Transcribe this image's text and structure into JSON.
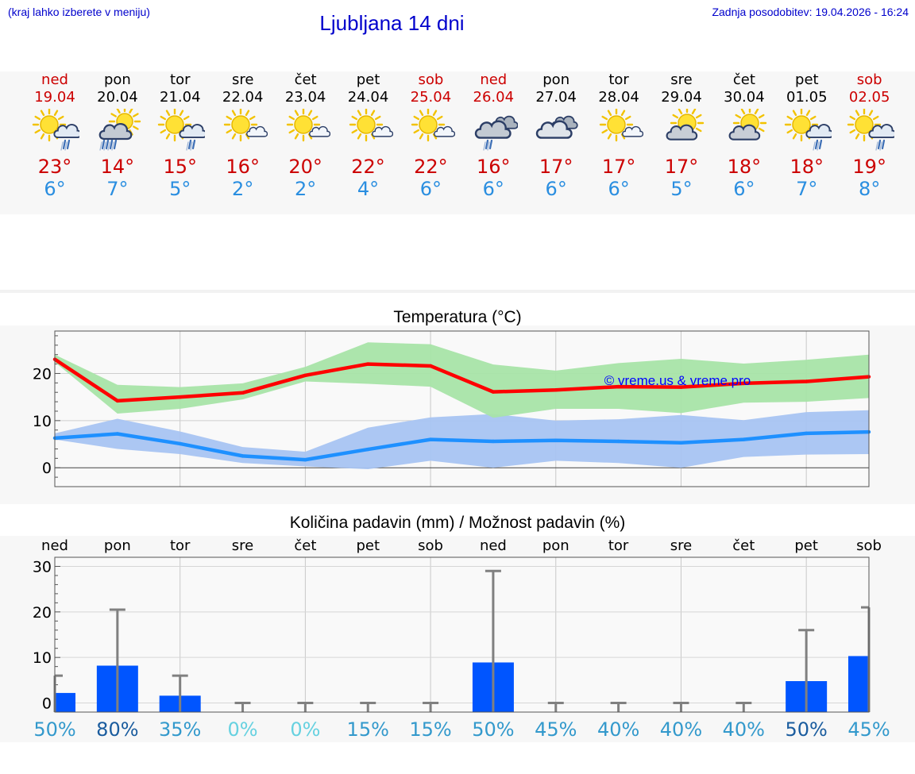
{
  "header": {
    "hint": "(kraj lahko izberete v meniju)",
    "title": "Ljubljana 14 dni",
    "updated_label": "Zadnja posodobitev:",
    "updated_value": "19.04.2026 - 16:24"
  },
  "days": [
    {
      "name": "ned",
      "date": "19.04",
      "weekend": true,
      "icon": "sun-cloud-rain-icon",
      "max": "23°",
      "min": "6°"
    },
    {
      "name": "pon",
      "date": "20.04",
      "weekend": false,
      "icon": "cloud-heavy-rain-icon",
      "max": "14°",
      "min": "7°"
    },
    {
      "name": "tor",
      "date": "21.04",
      "weekend": false,
      "icon": "sun-cloud-rain-icon",
      "max": "15°",
      "min": "5°"
    },
    {
      "name": "sre",
      "date": "22.04",
      "weekend": false,
      "icon": "sun-small-cloud-icon",
      "max": "16°",
      "min": "2°"
    },
    {
      "name": "čet",
      "date": "23.04",
      "weekend": false,
      "icon": "sun-small-cloud-icon",
      "max": "20°",
      "min": "2°"
    },
    {
      "name": "pet",
      "date": "24.04",
      "weekend": false,
      "icon": "sun-small-cloud-icon",
      "max": "22°",
      "min": "4°"
    },
    {
      "name": "sob",
      "date": "25.04",
      "weekend": true,
      "icon": "sun-small-cloud-icon",
      "max": "22°",
      "min": "6°"
    },
    {
      "name": "ned",
      "date": "26.04",
      "weekend": true,
      "icon": "cloud-rain-icon",
      "max": "16°",
      "min": "6°"
    },
    {
      "name": "pon",
      "date": "27.04",
      "weekend": false,
      "icon": "cloudy-icon",
      "max": "17°",
      "min": "6°"
    },
    {
      "name": "tor",
      "date": "28.04",
      "weekend": false,
      "icon": "sun-small-cloud-icon",
      "max": "17°",
      "min": "6°"
    },
    {
      "name": "sre",
      "date": "29.04",
      "weekend": false,
      "icon": "sun-big-cloud-icon",
      "max": "17°",
      "min": "5°"
    },
    {
      "name": "čet",
      "date": "30.04",
      "weekend": false,
      "icon": "sun-big-cloud-icon",
      "max": "18°",
      "min": "6°"
    },
    {
      "name": "pet",
      "date": "01.05",
      "weekend": false,
      "icon": "sun-cloud-rain-icon",
      "max": "18°",
      "min": "7°"
    },
    {
      "name": "sob",
      "date": "02.05",
      "weekend": true,
      "icon": "sun-cloud-rain-icon",
      "max": "19°",
      "min": "8°"
    }
  ],
  "colors": {
    "link_blue": "#0000cc",
    "max_line": "#ff0000",
    "max_band": "#a8e4a8",
    "min_line": "#1e90ff",
    "min_band": "#a8c4f2",
    "bar": "#0055ff",
    "whisker": "#808080"
  },
  "chart_data": [
    {
      "type": "line",
      "title": "Temperatura (°C)",
      "ylim": [
        -4,
        29
      ],
      "yticks": [
        0,
        10,
        20
      ],
      "watermark": "© vreme.us & vreme.pro",
      "categories": [
        "ned",
        "pon",
        "tor",
        "sre",
        "čet",
        "pet",
        "sob",
        "ned",
        "pon",
        "tor",
        "sre",
        "čet",
        "pet",
        "sob"
      ],
      "series": [
        {
          "name": "max",
          "values": [
            23,
            14.2,
            15,
            15.9,
            19.6,
            22,
            21.6,
            16.1,
            16.5,
            17.2,
            17.1,
            17.9,
            18.3,
            19.3
          ]
        },
        {
          "name": "max_range",
          "low": [
            22.4,
            11.5,
            12.5,
            14.5,
            18.3,
            17.8,
            17.2,
            10.6,
            12.5,
            12.5,
            11.6,
            13.8,
            14,
            14.8
          ],
          "high": [
            24,
            17.6,
            17.1,
            17.9,
            21.4,
            26.6,
            26.2,
            21.9,
            20.6,
            22.2,
            23.1,
            22.1,
            22.9,
            24
          ]
        },
        {
          "name": "min",
          "values": [
            6.3,
            7.2,
            5.1,
            2.5,
            1.7,
            3.9,
            6,
            5.6,
            5.8,
            5.6,
            5.3,
            6,
            7.3,
            7.6
          ]
        },
        {
          "name": "min_range",
          "low": [
            6,
            4,
            2.9,
            1,
            0.3,
            -0.3,
            1.5,
            0,
            1.5,
            1,
            0,
            2.3,
            2.8,
            2.9
          ],
          "high": [
            7.3,
            10.4,
            7.7,
            4.4,
            3.4,
            8.5,
            10.7,
            11.4,
            10,
            10.3,
            11.2,
            10.1,
            11.8,
            12.2
          ]
        }
      ]
    },
    {
      "type": "bar",
      "title": "Količina padavin (mm) / Možnost padavin (%)",
      "ylim": [
        -2,
        32
      ],
      "yticks": [
        0,
        10,
        20,
        30
      ],
      "categories": [
        "ned",
        "pon",
        "tor",
        "sre",
        "čet",
        "pet",
        "sob",
        "ned",
        "pon",
        "tor",
        "sre",
        "čet",
        "pet",
        "sob"
      ],
      "values": [
        2.2,
        8.2,
        1.6,
        0,
        0,
        0,
        0,
        8.9,
        0,
        0,
        0,
        0,
        4.8,
        10.3
      ],
      "upper": [
        6,
        20.5,
        6,
        0,
        0,
        0,
        0,
        29,
        0,
        0,
        0,
        0,
        16,
        21
      ],
      "probability": [
        "50%",
        "80%",
        "35%",
        "0%",
        "0%",
        "15%",
        "15%",
        "50%",
        "45%",
        "40%",
        "40%",
        "40%",
        "50%",
        "45%"
      ],
      "probability_colors": [
        "#3399cc",
        "#1a5c9e",
        "#3399cc",
        "#66d1e0",
        "#66d1e0",
        "#3399cc",
        "#3399cc",
        "#3399cc",
        "#3399cc",
        "#3399cc",
        "#3399cc",
        "#3399cc",
        "#1a5c9e",
        "#3399cc"
      ]
    }
  ]
}
